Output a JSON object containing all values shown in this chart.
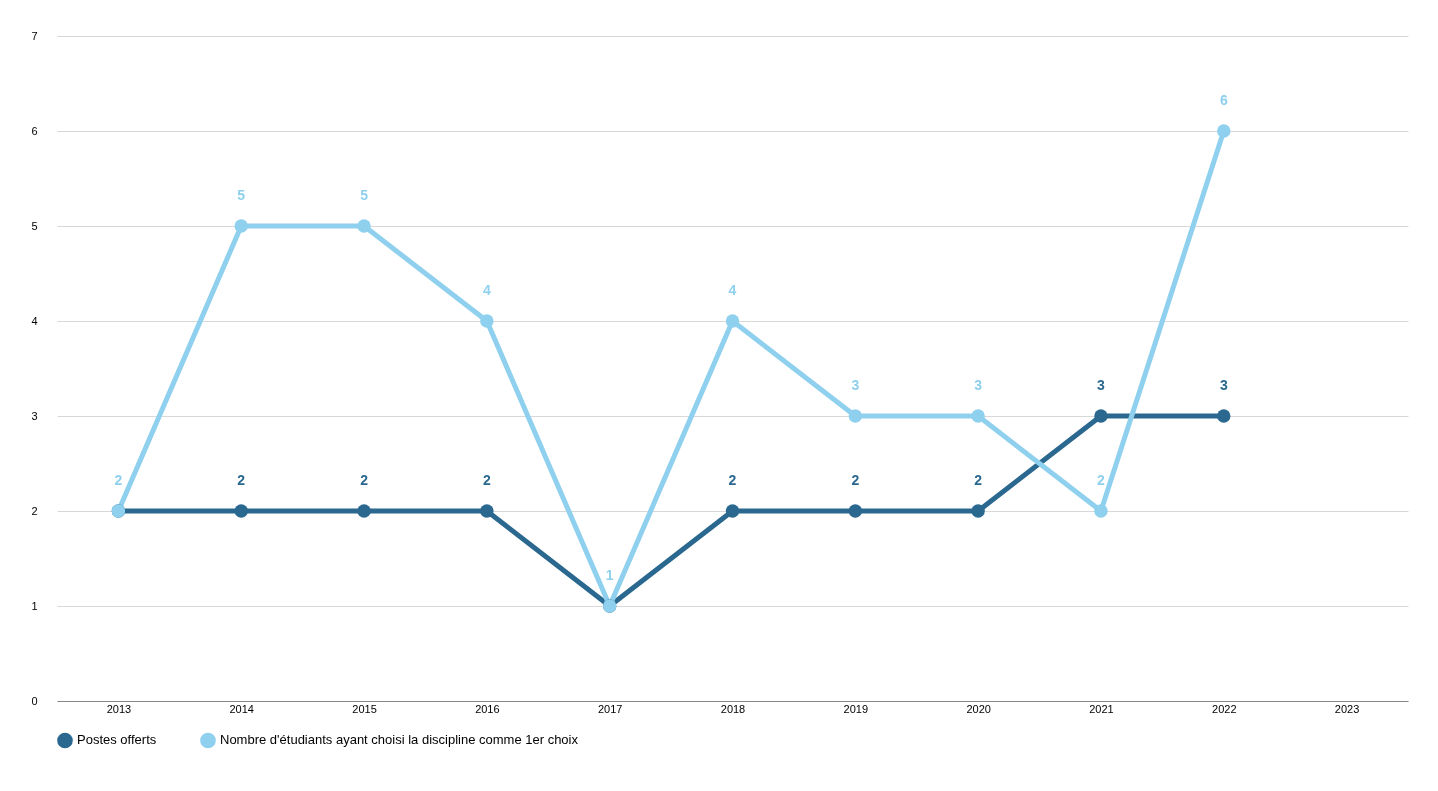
{
  "chart_data": {
    "type": "line",
    "categories": [
      "2013",
      "2014",
      "2015",
      "2016",
      "2017",
      "2018",
      "2019",
      "2020",
      "2021",
      "2022",
      "2023"
    ],
    "series": [
      {
        "name": "Postes offerts",
        "color": "#2a6890",
        "values": [
          2,
          2,
          2,
          2,
          1,
          2,
          2,
          2,
          3,
          3,
          null
        ],
        "value_labels": [
          null,
          "2",
          "2",
          "2",
          null,
          "2",
          "2",
          "2",
          "3",
          "3",
          null
        ]
      },
      {
        "name": "Nombre d'étudiants ayant choisi la discipline comme 1er choix",
        "color": "#8fd0ee",
        "values": [
          2,
          5,
          5,
          4,
          1,
          4,
          3,
          3,
          2,
          6,
          null
        ],
        "value_labels": [
          "2",
          "5",
          "5",
          "4",
          "1",
          "4",
          "3",
          "3",
          "2",
          "6",
          null
        ]
      }
    ],
    "ylim": [
      0,
      7
    ],
    "yticks": [
      0,
      1,
      2,
      3,
      4,
      5,
      6,
      7
    ],
    "grid": "y",
    "legend": "bottom",
    "marker": "circle",
    "line_style": "solid"
  }
}
